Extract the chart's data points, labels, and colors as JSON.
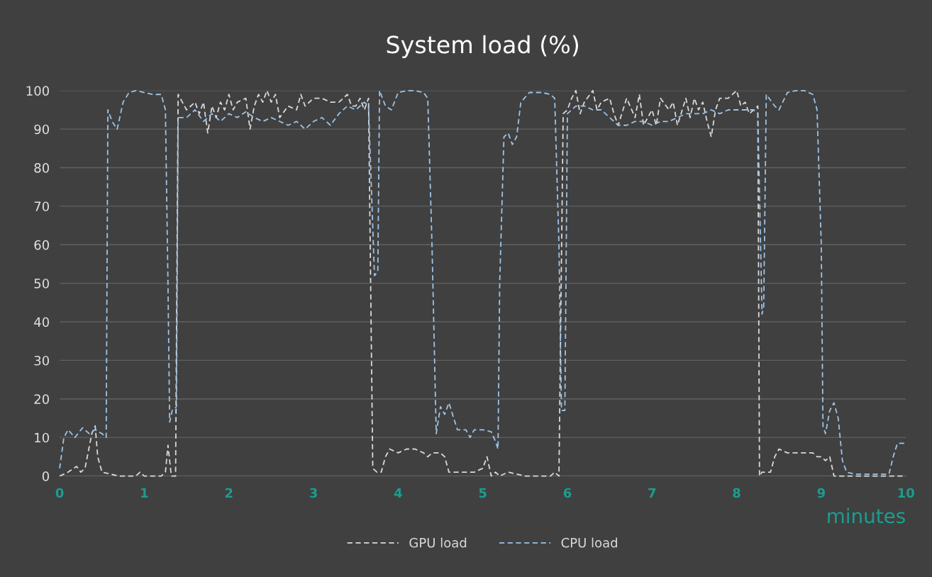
{
  "chart_data": {
    "type": "line",
    "title": "System load (%)",
    "xlabel": "minutes",
    "xlim": [
      0,
      10
    ],
    "ylim": [
      0,
      100
    ],
    "xticks": [
      0,
      1,
      2,
      3,
      4,
      5,
      6,
      7,
      8,
      9,
      10
    ],
    "yticks": [
      0,
      10,
      20,
      30,
      40,
      50,
      60,
      70,
      80,
      90,
      100
    ],
    "grid": "y",
    "legend": "bottom",
    "line_style": "dashed",
    "marker": "none",
    "series": [
      {
        "name": "GPU load",
        "color": "#d9d9d9",
        "x": [
          0,
          0.1,
          0.2,
          0.25,
          0.3,
          0.38,
          0.42,
          0.45,
          0.5,
          0.6,
          0.7,
          0.8,
          0.9,
          0.95,
          1.0,
          1.1,
          1.2,
          1.25,
          1.28,
          1.32,
          1.37,
          1.4,
          1.45,
          1.5,
          1.6,
          1.65,
          1.7,
          1.75,
          1.8,
          1.85,
          1.9,
          1.95,
          2.0,
          2.05,
          2.1,
          2.2,
          2.25,
          2.3,
          2.35,
          2.4,
          2.45,
          2.5,
          2.55,
          2.6,
          2.7,
          2.8,
          2.85,
          2.9,
          3.0,
          3.1,
          3.2,
          3.3,
          3.4,
          3.45,
          3.5,
          3.55,
          3.6,
          3.65,
          3.7,
          3.75,
          3.8,
          3.85,
          3.9,
          4.0,
          4.1,
          4.2,
          4.3,
          4.35,
          4.4,
          4.5,
          4.55,
          4.6,
          4.65,
          4.7,
          4.8,
          4.9,
          5.0,
          5.05,
          5.1,
          5.15,
          5.2,
          5.3,
          5.4,
          5.5,
          5.6,
          5.7,
          5.8,
          5.85,
          5.9,
          5.95,
          6.0,
          6.05,
          6.1,
          6.15,
          6.2,
          6.3,
          6.35,
          6.4,
          6.5,
          6.55,
          6.6,
          6.7,
          6.8,
          6.85,
          6.9,
          7.0,
          7.05,
          7.1,
          7.2,
          7.25,
          7.3,
          7.4,
          7.45,
          7.5,
          7.55,
          7.6,
          7.65,
          7.7,
          7.75,
          7.8,
          7.9,
          8.0,
          8.05,
          8.1,
          8.15,
          8.2,
          8.25,
          8.27,
          8.3,
          8.4,
          8.45,
          8.5,
          8.6,
          8.7,
          8.8,
          8.9,
          8.95,
          9.0,
          9.05,
          9.1,
          9.15,
          9.3,
          9.5,
          9.7,
          9.9,
          10
        ],
        "values": [
          0,
          1,
          2.5,
          1,
          2,
          11,
          13,
          5,
          1,
          0.5,
          0,
          0,
          0,
          1,
          0,
          0,
          0,
          1,
          8,
          0,
          0,
          99,
          97,
          95,
          97,
          94,
          97,
          89,
          96,
          93,
          97,
          95,
          99,
          95,
          97,
          98,
          90,
          96,
          99,
          97,
          100,
          97,
          99,
          93,
          96,
          95,
          99,
          96,
          98,
          98,
          97,
          97,
          99,
          96,
          96,
          98,
          95,
          98,
          2,
          1,
          1,
          5,
          7,
          6,
          7,
          7,
          6,
          5,
          6,
          6,
          5,
          1,
          1,
          1,
          1,
          1,
          2,
          5,
          0,
          1,
          0,
          1,
          0.5,
          0,
          0,
          0,
          0,
          1,
          0,
          94,
          95,
          98,
          100,
          94,
          97,
          100,
          95,
          97,
          98,
          94,
          91,
          98,
          93,
          99,
          91,
          95,
          91,
          98,
          95,
          97,
          91,
          98,
          93,
          98,
          95,
          97,
          92,
          88,
          95,
          98,
          98,
          100,
          96,
          97,
          94,
          95,
          96,
          0,
          1,
          1,
          5,
          7,
          6,
          6,
          6,
          6,
          5,
          5,
          4,
          5,
          0,
          0,
          0,
          0,
          0,
          0
        ]
      },
      {
        "name": "CPU load",
        "color": "#9dc3e6",
        "x": [
          0,
          0.05,
          0.1,
          0.18,
          0.27,
          0.35,
          0.42,
          0.5,
          0.55,
          0.57,
          0.62,
          0.68,
          0.75,
          0.82,
          0.9,
          1.0,
          1.1,
          1.2,
          1.25,
          1.28,
          1.3,
          1.33,
          1.38,
          1.4,
          1.5,
          1.6,
          1.7,
          1.8,
          1.9,
          2.0,
          2.1,
          2.2,
          2.3,
          2.4,
          2.5,
          2.6,
          2.7,
          2.8,
          2.9,
          3.0,
          3.1,
          3.2,
          3.3,
          3.4,
          3.5,
          3.6,
          3.65,
          3.72,
          3.76,
          3.78,
          3.85,
          3.92,
          4.0,
          4.1,
          4.2,
          4.3,
          4.35,
          4.4,
          4.45,
          4.5,
          4.55,
          4.6,
          4.7,
          4.8,
          4.85,
          4.9,
          5.0,
          5.1,
          5.15,
          5.18,
          5.2,
          5.25,
          5.3,
          5.35,
          5.4,
          5.45,
          5.55,
          5.7,
          5.8,
          5.85,
          5.9,
          5.93,
          5.97,
          6.0,
          6.1,
          6.2,
          6.3,
          6.4,
          6.5,
          6.6,
          6.7,
          6.8,
          6.9,
          7.0,
          7.1,
          7.2,
          7.3,
          7.4,
          7.5,
          7.6,
          7.7,
          7.8,
          7.9,
          8.0,
          8.1,
          8.2,
          8.25,
          8.3,
          8.32,
          8.35,
          8.45,
          8.5,
          8.6,
          8.7,
          8.8,
          8.9,
          8.95,
          9.0,
          9.02,
          9.05,
          9.1,
          9.15,
          9.2,
          9.25,
          9.3,
          9.4,
          9.6,
          9.8,
          9.85,
          9.9,
          10
        ],
        "values": [
          2,
          10,
          12,
          10,
          12.5,
          11,
          12,
          11,
          10,
          95,
          92,
          90,
          97,
          99.5,
          100,
          99.5,
          99,
          99,
          95,
          50,
          14,
          17,
          18,
          93,
          93,
          95,
          92,
          94,
          92,
          94,
          93,
          94.5,
          93,
          92,
          93,
          92,
          91,
          92,
          90,
          92,
          93,
          91,
          94,
          96,
          95,
          97,
          96,
          52,
          53,
          100,
          96,
          95,
          99.5,
          100,
          100,
          99.5,
          98,
          60,
          11,
          18,
          16,
          19,
          12,
          12,
          10,
          12,
          12,
          11.5,
          9,
          7,
          50,
          88,
          89,
          86,
          88,
          97,
          99.5,
          99.5,
          99,
          98,
          60,
          17,
          17,
          94,
          96,
          96,
          95,
          95,
          93,
          91,
          91,
          92,
          92,
          91,
          92,
          92,
          93,
          94,
          94,
          94,
          95,
          94,
          95,
          95,
          95,
          95,
          94,
          42,
          44,
          99,
          96,
          95,
          99.5,
          100,
          100,
          99,
          95,
          60,
          13,
          11,
          17,
          19,
          15,
          4,
          1,
          0.5,
          0.5,
          0.5,
          5,
          8.5,
          8.5
        ]
      }
    ]
  }
}
